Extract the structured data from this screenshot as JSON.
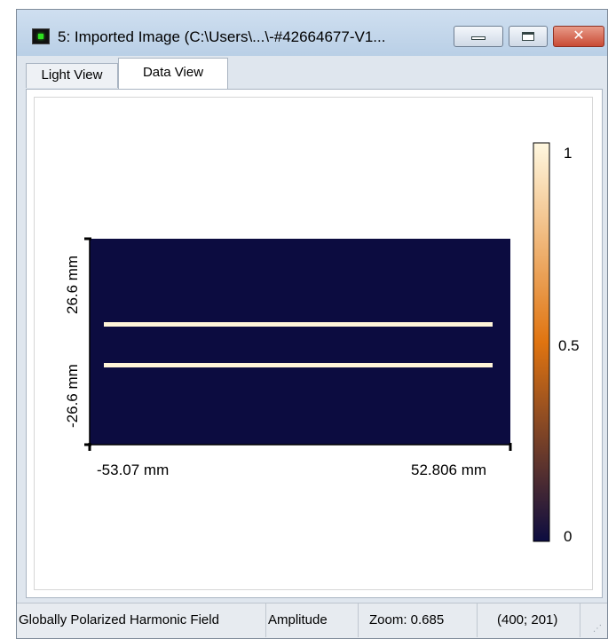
{
  "window": {
    "title": "5: Imported Image (C:\\Users\\...\\-#42664677-V1...",
    "close_glyph": "✕"
  },
  "tabs": [
    {
      "label": "Light View",
      "active": false
    },
    {
      "label": "Data View",
      "active": true
    }
  ],
  "plot": {
    "y_labels": [
      "26.6 mm",
      "-26.6 mm"
    ],
    "x_labels": [
      "-53.07 mm",
      "52.806 mm"
    ],
    "colorbar_ticks": [
      "1",
      "0.5",
      "0"
    ],
    "colors": {
      "background": "#0c0c40",
      "line": "#fff5d8",
      "colorbar_top": "#fff8e0",
      "colorbar_mid": "#e07410",
      "colorbar_bottom": "#0c0c40"
    }
  },
  "status": {
    "field_type": "Globally Polarized Harmonic Field",
    "quantity": "Amplitude",
    "zoom": "Zoom: 0.685",
    "coords": "(400; 201)"
  }
}
